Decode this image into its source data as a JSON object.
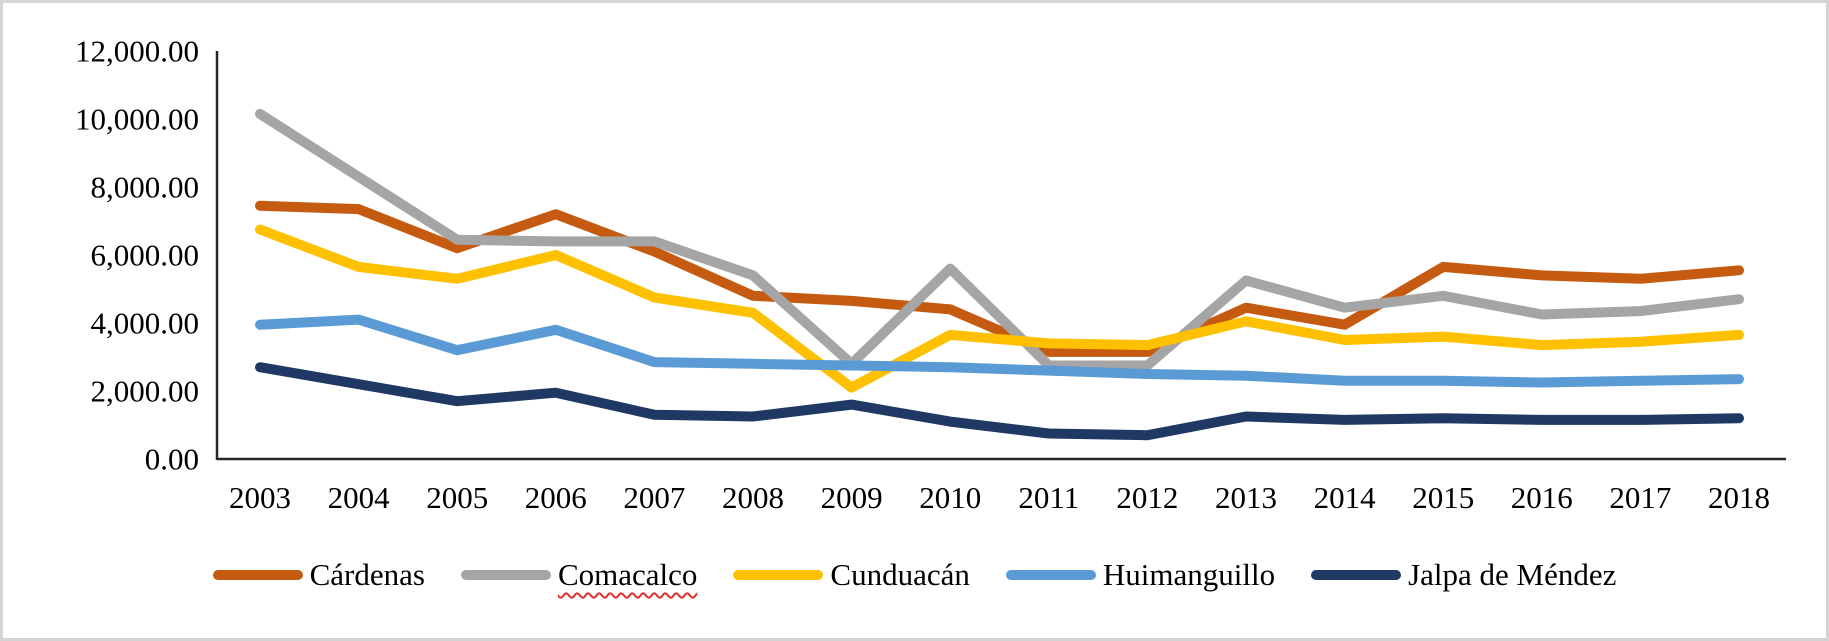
{
  "figure": {
    "background": "#ffffff",
    "border_color": "#d4d4d4",
    "axis_color": "#262626",
    "text_color": "#000000"
  },
  "chart_data": {
    "type": "line",
    "title": "",
    "xlabel": "",
    "ylabel": "",
    "grid": false,
    "legend_position": "bottom",
    "ylim": [
      0,
      12000
    ],
    "x": [
      2003,
      2004,
      2005,
      2006,
      2007,
      2008,
      2009,
      2010,
      2011,
      2012,
      2013,
      2014,
      2015,
      2016,
      2017,
      2018
    ],
    "y_ticks": [
      {
        "value": 0,
        "label": "0.00"
      },
      {
        "value": 2000,
        "label": "2,000.00"
      },
      {
        "value": 4000,
        "label": "4,000.00"
      },
      {
        "value": 6000,
        "label": "6,000.00"
      },
      {
        "value": 8000,
        "label": "8,000.00"
      },
      {
        "value": 10000,
        "label": "10,000.00"
      },
      {
        "value": 12000,
        "label": "12,000.00"
      }
    ],
    "series": [
      {
        "name": "Cárdenas",
        "slug": "cardenas",
        "color": "#C55A11",
        "spellcheck_underline": false,
        "values": [
          7450,
          7350,
          6200,
          7200,
          6100,
          4800,
          4650,
          4400,
          3150,
          3150,
          4450,
          3950,
          5650,
          5400,
          5300,
          5550
        ]
      },
      {
        "name": "Comacalco",
        "slug": "comacalco",
        "color": "#A5A5A5",
        "spellcheck_underline": true,
        "values": [
          10150,
          8300,
          6450,
          6400,
          6400,
          5400,
          2800,
          5600,
          2750,
          2750,
          5250,
          4450,
          4800,
          4250,
          4350,
          4700
        ]
      },
      {
        "name": "Cunduacán",
        "slug": "cunduacan",
        "color": "#FFC000",
        "spellcheck_underline": false,
        "values": [
          6750,
          5650,
          5300,
          6000,
          4750,
          4300,
          2100,
          3650,
          3400,
          3350,
          4050,
          3500,
          3600,
          3350,
          3450,
          3650
        ]
      },
      {
        "name": "Huimanguillo",
        "slug": "huimanguillo",
        "color": "#5B9BD5",
        "spellcheck_underline": false,
        "values": [
          3950,
          4100,
          3200,
          3800,
          2850,
          2800,
          2750,
          2700,
          2600,
          2500,
          2450,
          2300,
          2300,
          2250,
          2300,
          2350
        ]
      },
      {
        "name": "Jalpa de Méndez",
        "slug": "jalpa-de-mendez",
        "color": "#1F3864",
        "spellcheck_underline": false,
        "values": [
          2700,
          2200,
          1700,
          1950,
          1300,
          1250,
          1600,
          1100,
          750,
          700,
          1250,
          1150,
          1200,
          1150,
          1150,
          1200
        ]
      }
    ]
  }
}
